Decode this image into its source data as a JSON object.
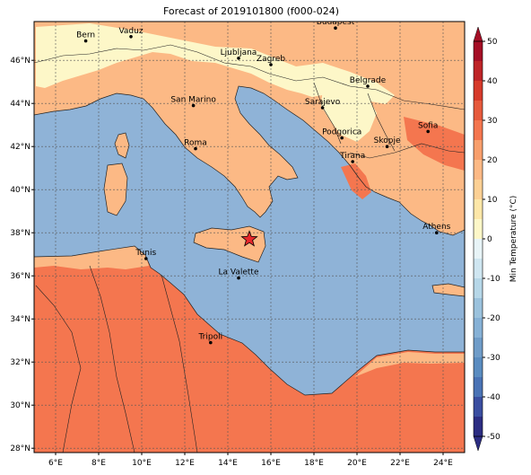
{
  "title": "Forecast of 2019101800 (f000-024)",
  "map": {
    "lon_range": [
      5,
      25
    ],
    "lat_range": [
      27.8,
      47.8
    ],
    "lon_ticks": [
      {
        "value": 6,
        "label": "6°E"
      },
      {
        "value": 8,
        "label": "8°E"
      },
      {
        "value": 10,
        "label": "10°E"
      },
      {
        "value": 12,
        "label": "12°E"
      },
      {
        "value": 14,
        "label": "14°E"
      },
      {
        "value": 16,
        "label": "16°E"
      },
      {
        "value": 18,
        "label": "18°E"
      },
      {
        "value": 20,
        "label": "20°E"
      },
      {
        "value": 22,
        "label": "22°E"
      },
      {
        "value": 24,
        "label": "24°E"
      }
    ],
    "lat_ticks": [
      {
        "value": 28,
        "label": "28°N"
      },
      {
        "value": 30,
        "label": "30°N"
      },
      {
        "value": 32,
        "label": "32°N"
      },
      {
        "value": 34,
        "label": "34°N"
      },
      {
        "value": 36,
        "label": "36°N"
      },
      {
        "value": 38,
        "label": "38°N"
      },
      {
        "value": 40,
        "label": "40°N"
      },
      {
        "value": 42,
        "label": "42°N"
      },
      {
        "value": 44,
        "label": "44°N"
      },
      {
        "value": 46,
        "label": "46°N"
      }
    ],
    "grid": true,
    "sea_color": "#8fb3d7",
    "cities": [
      {
        "name": "Bern",
        "lon": 7.4,
        "lat": 46.9
      },
      {
        "name": "Vaduz",
        "lon": 9.5,
        "lat": 47.1
      },
      {
        "name": "Budapest",
        "lon": 19.0,
        "lat": 47.5
      },
      {
        "name": "Ljubljana",
        "lon": 14.5,
        "lat": 46.1
      },
      {
        "name": "Zagreb",
        "lon": 16.0,
        "lat": 45.8
      },
      {
        "name": "Belgrade",
        "lon": 20.5,
        "lat": 44.8
      },
      {
        "name": "San Marino",
        "lon": 12.4,
        "lat": 43.9
      },
      {
        "name": "Sarajevo",
        "lon": 18.4,
        "lat": 43.8
      },
      {
        "name": "Sofia",
        "lon": 23.3,
        "lat": 42.7
      },
      {
        "name": "Podgorica",
        "lon": 19.3,
        "lat": 42.4
      },
      {
        "name": "Skopje",
        "lon": 21.4,
        "lat": 42.0
      },
      {
        "name": "Roma",
        "lon": 12.5,
        "lat": 41.9
      },
      {
        "name": "Tirana",
        "lon": 19.8,
        "lat": 41.3
      },
      {
        "name": "Athens",
        "lon": 23.7,
        "lat": 38.0
      },
      {
        "name": "Tunis",
        "lon": 10.2,
        "lat": 36.8
      },
      {
        "name": "La Valette",
        "lon": 14.5,
        "lat": 35.9
      },
      {
        "name": "Tripoli",
        "lon": 13.2,
        "lat": 32.9
      }
    ],
    "marker": {
      "lon": 15.0,
      "lat": 37.7,
      "color": "#e8282c",
      "icon": "star-icon"
    }
  },
  "colorbar": {
    "label": "Min Temperature (°C)",
    "ticks": [
      -50,
      -40,
      -30,
      -20,
      -10,
      0,
      10,
      20,
      30,
      40,
      50
    ],
    "colors": [
      "#2c2d82",
      "#3a4ea0",
      "#4a73b5",
      "#6f9cc8",
      "#9bc2dd",
      "#cfe6f1",
      "#fdf7c8",
      "#fcb985",
      "#f4764f",
      "#d63a2b",
      "#a50f26"
    ]
  }
}
